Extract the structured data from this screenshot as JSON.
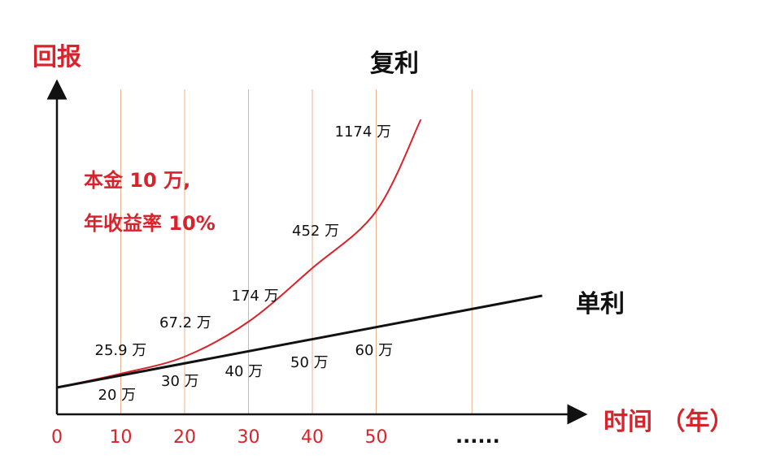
{
  "chart_data": {
    "type": "line",
    "title": "",
    "ylabel": "回报",
    "xlabel": "时间 （年）",
    "x_ticks": [
      0,
      10,
      20,
      30,
      40,
      50
    ],
    "x_ellipsis": "......",
    "xlim": [
      0,
      65
    ],
    "ylim": [
      0,
      1200
    ],
    "grid": "vertical",
    "annotation": [
      "本金 10 万,",
      "年收益率 10%"
    ],
    "series": [
      {
        "name": "复利",
        "color": "#d9232c",
        "points": [
          {
            "x": 10,
            "y": 25.9,
            "label": "25.9 万"
          },
          {
            "x": 20,
            "y": 67.2,
            "label": "67.2 万"
          },
          {
            "x": 30,
            "y": 174,
            "label": "174 万"
          },
          {
            "x": 40,
            "y": 452,
            "label": "452 万"
          },
          {
            "x": 50,
            "y": 1174,
            "label": "1174 万"
          }
        ]
      },
      {
        "name": "单利",
        "color": "#111111",
        "points": [
          {
            "x": 10,
            "y": 20,
            "label": "20 万"
          },
          {
            "x": 20,
            "y": 30,
            "label": "30 万"
          },
          {
            "x": 30,
            "y": 40,
            "label": "40 万"
          },
          {
            "x": 40,
            "y": 50,
            "label": "50 万"
          },
          {
            "x": 50,
            "y": 60,
            "label": "60 万"
          }
        ]
      }
    ]
  }
}
